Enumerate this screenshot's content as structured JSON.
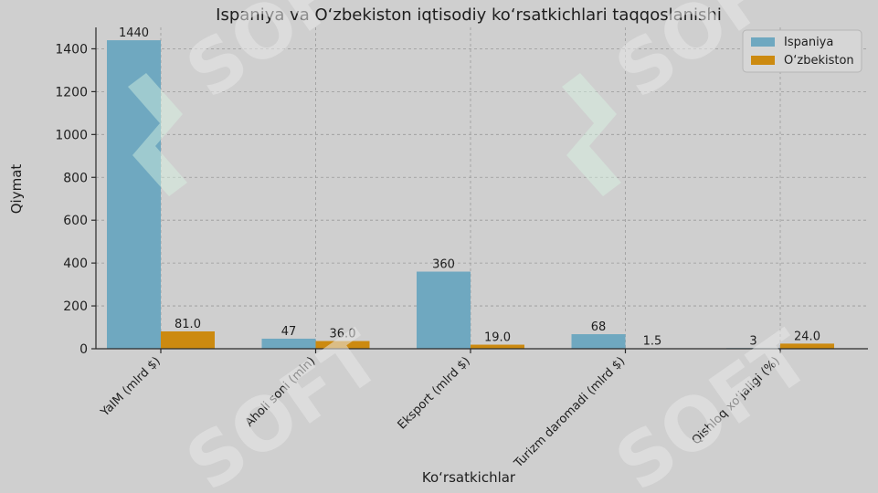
{
  "chart_data": {
    "type": "bar",
    "title": "Ispaniya va O‘zbekiston iqtisodiy ko‘rsatkichlari taqqoslanishi",
    "xlabel": "Ko‘rsatkichlar",
    "ylabel": "Qiymat",
    "categories": [
      "YaIM (mlrd $)",
      "Aholi soni (mln)",
      "Eksport (mlrd $)",
      "Turizm daromadi (mlrd $)",
      "Qishloq xo‘jaligi (%)"
    ],
    "series": [
      {
        "name": "Ispaniya",
        "values": [
          1440,
          47,
          360,
          68,
          3
        ],
        "labels": [
          "1440",
          "47",
          "360",
          "68",
          "3"
        ],
        "color": "#6fa8c0"
      },
      {
        "name": "O‘zbekiston",
        "values": [
          81.0,
          36.0,
          19.0,
          1.5,
          24.0
        ],
        "labels": [
          "81.0",
          "36.0",
          "19.0",
          "1.5",
          "24.0"
        ],
        "color": "#cc8a10"
      }
    ],
    "ylim": [
      0,
      1500
    ],
    "yticks": [
      0,
      200,
      400,
      600,
      800,
      1000,
      1200,
      1400
    ],
    "grid": true,
    "legend_position": "top-right"
  },
  "watermark": {
    "text": "SOFT",
    "icon": "logo-mark-icon",
    "color": "#d8f3e3"
  }
}
